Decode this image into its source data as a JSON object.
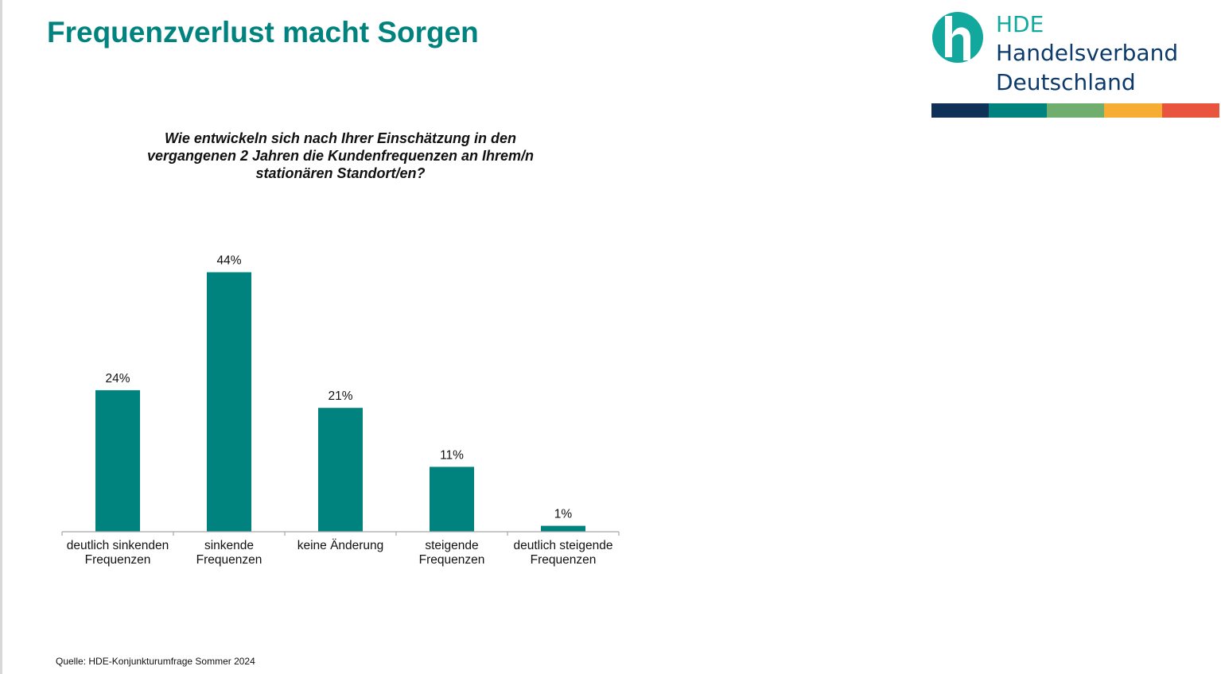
{
  "slide": {
    "title": "Frequenzverlust macht Sorgen",
    "source": "Quelle: HDE-Konjunkturumfrage Sommer 2024"
  },
  "logo": {
    "abbreviation": "HDE",
    "name_line1": "Handelsverband",
    "name_line2": "Deutschland",
    "colors": {
      "mark": "#13a89e",
      "text": "#0b3a6b",
      "strip": [
        "#0f3057",
        "#00837f",
        "#6fae6e",
        "#f5ad34",
        "#e8543d"
      ]
    }
  },
  "chart_data": {
    "type": "bar",
    "title": "Wie entwickeln sich nach Ihrer Einschätzung in den vergangenen 2 Jahren die Kundenfrequenzen an Ihrem/n stationären Standort/en?",
    "title_lines": [
      "Wie entwickeln sich nach Ihrer Einschätzung in den",
      "vergangenen 2 Jahren die Kundenfrequenzen an Ihrem/n",
      "stationären Standort/en?"
    ],
    "categories": [
      [
        "deutlich sinkenden",
        "Frequenzen"
      ],
      [
        "sinkende",
        "Frequenzen"
      ],
      [
        "keine Änderung"
      ],
      [
        "steigende",
        "Frequenzen"
      ],
      [
        "deutlich steigende",
        "Frequenzen"
      ]
    ],
    "values": [
      24,
      44,
      21,
      11,
      1
    ],
    "value_labels": [
      "24%",
      "44%",
      "21%",
      "11%",
      "1%"
    ],
    "unit": "%",
    "ylim": [
      0,
      50
    ],
    "bar_color": "#00837f",
    "grid": false,
    "xlabel": "",
    "ylabel": ""
  }
}
